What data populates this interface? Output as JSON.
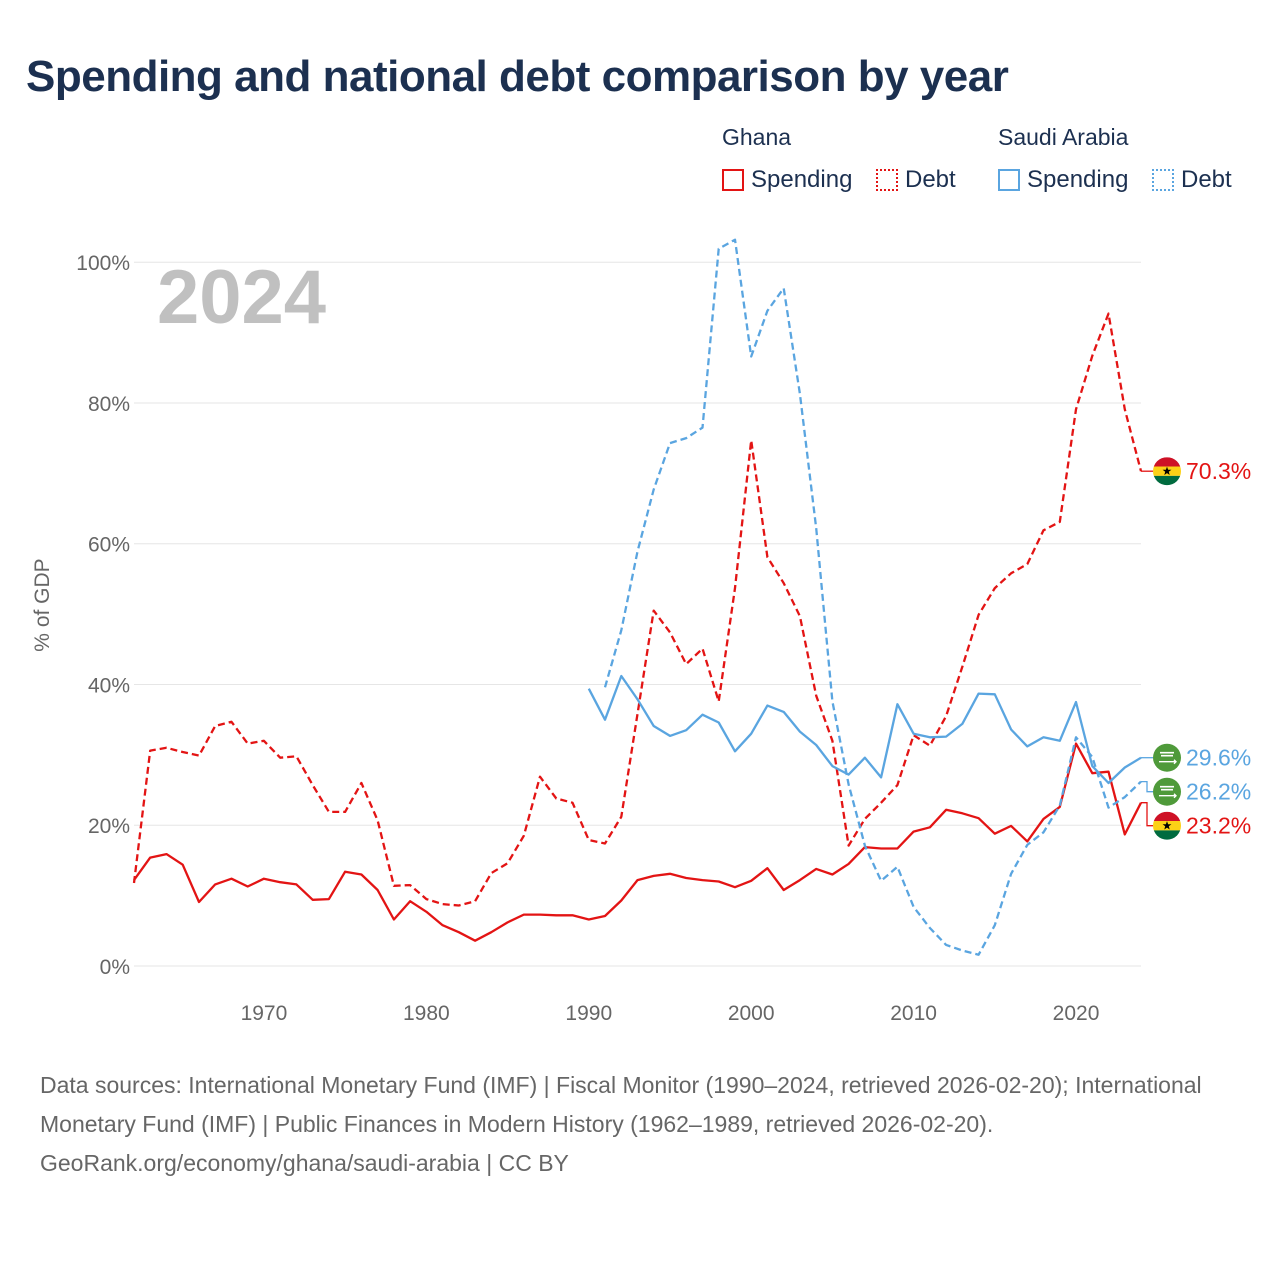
{
  "title": "Spending and national debt comparison by year",
  "legend": {
    "groups": [
      {
        "name": "Ghana",
        "color": "#e31414",
        "items": [
          {
            "label": "Spending",
            "style": "solid"
          },
          {
            "label": "Debt",
            "style": "dotted"
          }
        ]
      },
      {
        "name": "Saudi Arabia",
        "color": "#5aa5e0",
        "items": [
          {
            "label": "Spending",
            "style": "solid"
          },
          {
            "label": "Debt",
            "style": "dotted"
          }
        ]
      }
    ]
  },
  "colors": {
    "ghana": "#e31414",
    "saudi": "#5aa5e0",
    "grid": "#e6e6e6",
    "text": "#666666",
    "title": "#1c3050"
  },
  "chart_data": {
    "type": "line",
    "title": "Spending and national debt comparison by year",
    "year_label": "2024",
    "ylabel": "% of GDP",
    "xlabel": "",
    "xlim": [
      1962,
      2024
    ],
    "ylim": [
      0,
      105
    ],
    "y_ticks": [
      0,
      20,
      40,
      60,
      80,
      100
    ],
    "y_tick_labels": [
      "0%",
      "20%",
      "40%",
      "60%",
      "80%",
      "100%"
    ],
    "x_ticks": [
      1970,
      1980,
      1990,
      2000,
      2010,
      2020
    ],
    "x_tick_labels": [
      "1970",
      "1980",
      "1990",
      "2000",
      "2010",
      "2020"
    ],
    "series": [
      {
        "name": "Ghana Spending",
        "country": "ghana",
        "style": "solid",
        "start": 1962,
        "values": [
          12.2,
          15.4,
          15.9,
          14.4,
          9.1,
          11.6,
          12.4,
          11.3,
          12.4,
          11.9,
          11.6,
          9.4,
          9.5,
          13.4,
          13.0,
          10.8,
          6.6,
          9.2,
          7.7,
          5.8,
          4.8,
          3.6,
          4.8,
          6.2,
          7.3,
          7.3,
          7.2,
          7.2,
          6.6,
          7.1,
          9.3,
          12.2,
          12.8,
          13.1,
          12.5,
          12.2,
          12.0,
          11.2,
          12.1,
          13.9,
          10.8,
          12.2,
          13.8,
          13.0,
          14.5,
          16.9,
          16.7,
          16.7,
          19.1,
          19.7,
          22.2,
          21.7,
          21.0,
          18.8,
          19.9,
          17.7,
          20.9,
          22.6,
          31.6,
          27.4,
          27.6,
          18.7,
          23.2
        ],
        "end_label": "23.2%"
      },
      {
        "name": "Ghana Debt",
        "country": "ghana",
        "style": "dashed",
        "start": 1962,
        "values": [
          11.8,
          30.6,
          31.0,
          30.4,
          29.9,
          34.1,
          34.7,
          31.6,
          32.0,
          29.6,
          29.8,
          25.7,
          21.9,
          21.9,
          26.0,
          20.7,
          11.4,
          11.5,
          9.5,
          8.8,
          8.6,
          9.2,
          13.2,
          14.6,
          18.5,
          26.9,
          23.8,
          23.2,
          17.9,
          17.4,
          21.2,
          35.8,
          50.5,
          47.4,
          42.9,
          45.1,
          37.6,
          53.7,
          74.7,
          58.1,
          54.4,
          49.7,
          38.4,
          32.0,
          17.1,
          20.9,
          23.2,
          25.7,
          32.8,
          31.3,
          35.5,
          42.5,
          49.9,
          53.7,
          55.8,
          57.1,
          61.9,
          63.1,
          79.1,
          86.7,
          92.7,
          79.1,
          70.3
        ],
        "end_label": "70.3%"
      },
      {
        "name": "Saudi Arabia Spending",
        "country": "saudi",
        "style": "solid",
        "start": 1990,
        "values": [
          39.4,
          35.0,
          41.2,
          37.9,
          34.1,
          32.7,
          33.5,
          35.7,
          34.6,
          30.5,
          33.0,
          37.0,
          36.1,
          33.3,
          31.4,
          28.4,
          27.2,
          29.6,
          26.8,
          37.2,
          33.0,
          32.5,
          32.6,
          34.4,
          38.7,
          38.6,
          33.6,
          31.2,
          32.5,
          32.0,
          37.5,
          28.4,
          26.0,
          28.2,
          29.6
        ],
        "end_label": "29.6%"
      },
      {
        "name": "Saudi Arabia Debt",
        "country": "saudi",
        "style": "dashed",
        "start": 1990,
        "values": [
          null,
          39.6,
          47.7,
          58.9,
          67.7,
          74.3,
          75.0,
          76.5,
          101.9,
          103.2,
          86.6,
          93.1,
          96.3,
          81.3,
          62.2,
          37.6,
          25.8,
          17.1,
          12.1,
          14.1,
          8.4,
          5.4,
          3.0,
          2.2,
          1.6,
          5.8,
          13.1,
          17.2,
          19.0,
          22.8,
          32.5,
          29.7,
          22.5,
          24.0,
          26.2
        ],
        "end_label": "26.2%"
      }
    ]
  },
  "footer": {
    "sources": "Data sources: International Monetary Fund (IMF) | Fiscal Monitor (1990–2024, retrieved 2026-02-20); International Monetary Fund (IMF) | Public Finances in Modern History (1962–1989, retrieved 2026-02-20).",
    "credit": "GeoRank.org/economy/ghana/saudi-arabia | CC BY"
  }
}
